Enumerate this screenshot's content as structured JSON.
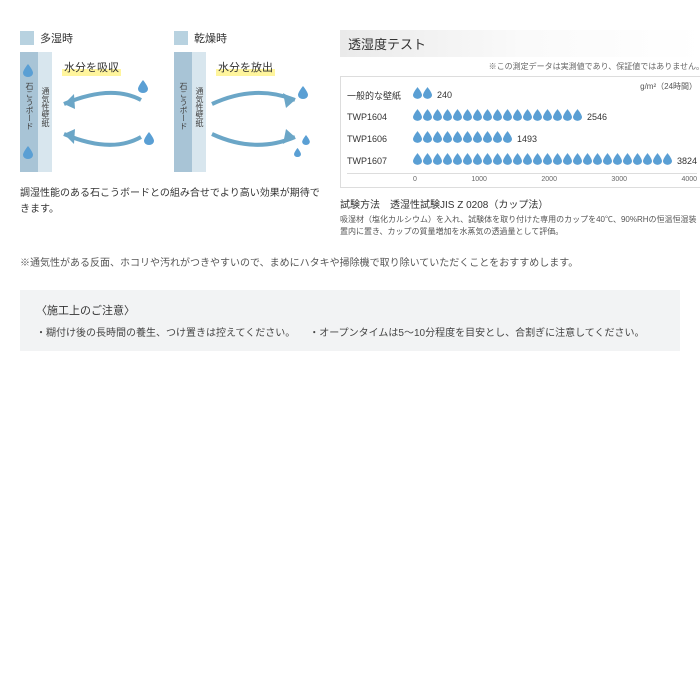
{
  "diagrams": {
    "humid": {
      "title": "多湿時",
      "sq_color": "#b8d2e0",
      "action": "水分を吸収"
    },
    "dry": {
      "title": "乾燥時",
      "sq_color": "#b8d2e0",
      "action": "水分を放出"
    },
    "board_label": "石こうボード",
    "paper_label": "通気性壁紙",
    "board_color": "#a8c4d6",
    "paper_color": "#d8e6ee",
    "drop_color": "#5a9fd4",
    "arrow_color": "#6ba6c7",
    "highlight": "#fff59d"
  },
  "desc": "調湿性能のある石こうボードとの組み合せでより高い効果が期待できます。",
  "test": {
    "title": "透湿度テスト",
    "note": "※この測定データは実測値であり、保証値ではありません。",
    "unit": "g/m²（24時間）",
    "drop_color": "#5a9fd4",
    "rows": [
      {
        "label": "一般的な壁紙",
        "value": 240,
        "drops": 2
      },
      {
        "label": "TWP1604",
        "value": 2546,
        "drops": 17
      },
      {
        "label": "TWP1606",
        "value": 1493,
        "drops": 10
      },
      {
        "label": "TWP1607",
        "value": 3824,
        "drops": 26
      }
    ],
    "axis": [
      "0",
      "1000",
      "2000",
      "3000",
      "4000"
    ],
    "method": "試験方法　透湿性試験JIS Z 0208（カップ法）",
    "method_desc": "吸湿材（塩化カルシウム）を入れ、試験体を取り付けた専用のカップを40℃、90%RHの恒温恒湿装置内に置き、カップの質量増加を水蒸気の透過量として評価。"
  },
  "warn": "※通気性がある反面、ホコリや汚れがつきやすいので、まめにハタキや掃除機で取り除いていただくことをおすすめします。",
  "caution": {
    "title": "〈施工上のご注意〉",
    "items": [
      "・糊付け後の長時間の養生、つけ置きは控えてください。",
      "・オープンタイムは5～10分程度を目安とし、合割ぎに注意してください。"
    ]
  }
}
